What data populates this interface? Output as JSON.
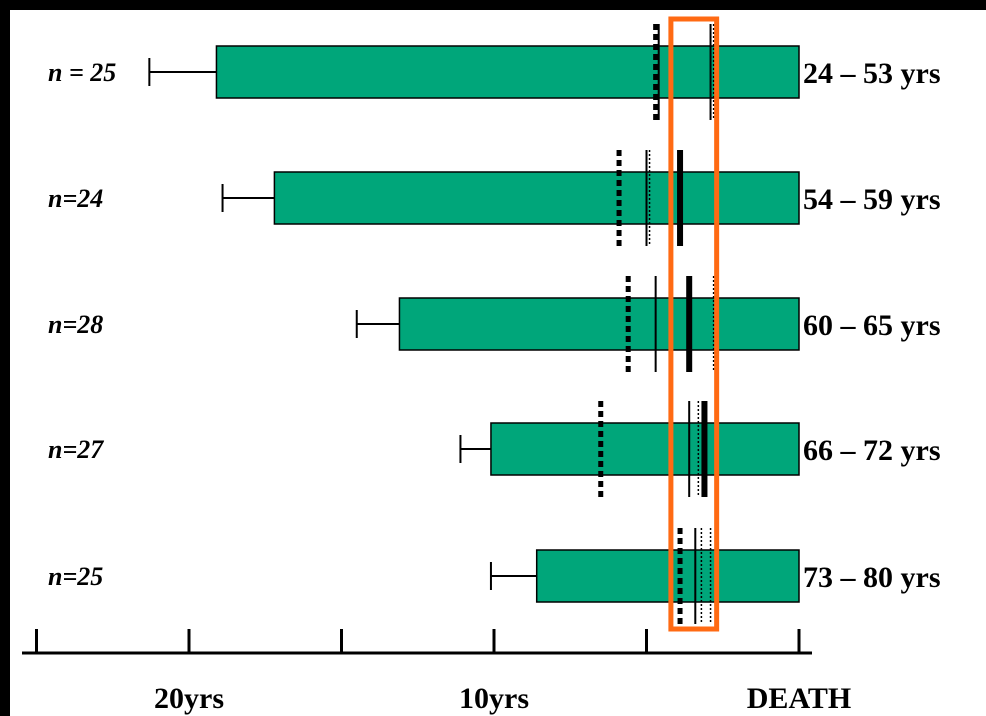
{
  "chart_data": {
    "type": "bar",
    "orientation": "horizontal",
    "x_axis": {
      "direction": "time before death",
      "range": [
        27,
        0
      ],
      "tick_values": [
        25,
        20,
        15,
        10,
        5,
        0
      ],
      "tick_labels": [
        {
          "value": 20,
          "label": "20yrs"
        },
        {
          "value": 10,
          "label": "10yrs"
        },
        {
          "value": 0,
          "label": "DEATH"
        }
      ]
    },
    "colors": {
      "bar": "#00a67a",
      "highlight": "#ff6a13",
      "background_outer": "#000000",
      "panel": "#ffffff"
    },
    "rows": [
      {
        "n_label": "n = 25",
        "age_label": "24 – 53 yrs",
        "bar_start": 19.1,
        "whisker_start": 21.3,
        "markers": [
          {
            "value": 4.7,
            "style": "dotted"
          },
          {
            "value": 4.6,
            "style": "solid-thin"
          },
          {
            "value": 2.9,
            "style": "solid-thin"
          },
          {
            "value": 2.8,
            "style": "dashed-thin"
          }
        ]
      },
      {
        "n_label": "n=24",
        "age_label": "54 – 59 yrs",
        "bar_start": 17.2,
        "whisker_start": 18.9,
        "markers": [
          {
            "value": 5.9,
            "style": "dotted"
          },
          {
            "value": 5.0,
            "style": "solid-thin"
          },
          {
            "value": 4.9,
            "style": "dashed-thin"
          },
          {
            "value": 3.9,
            "style": "solid-thick"
          }
        ]
      },
      {
        "n_label": "n=28",
        "age_label": "60 – 65 yrs",
        "bar_start": 13.1,
        "whisker_start": 14.5,
        "markers": [
          {
            "value": 5.6,
            "style": "dotted"
          },
          {
            "value": 4.7,
            "style": "solid-thin"
          },
          {
            "value": 3.6,
            "style": "solid-thick"
          },
          {
            "value": 2.8,
            "style": "dashed-thin"
          }
        ]
      },
      {
        "n_label": "n=27",
        "age_label": "66 – 72 yrs",
        "bar_start": 10.1,
        "whisker_start": 11.1,
        "markers": [
          {
            "value": 6.5,
            "style": "dotted"
          },
          {
            "value": 3.6,
            "style": "solid-thin"
          },
          {
            "value": 3.3,
            "style": "dashed-thin"
          },
          {
            "value": 3.1,
            "style": "solid-thick"
          }
        ]
      },
      {
        "n_label": "n=25",
        "age_label": "73 – 80 yrs",
        "bar_start": 8.6,
        "whisker_start": 10.1,
        "markers": [
          {
            "value": 3.9,
            "style": "dotted"
          },
          {
            "value": 3.4,
            "style": "solid-thin"
          },
          {
            "value": 3.2,
            "style": "dashed-thin"
          },
          {
            "value": 2.9,
            "style": "dashed-thin"
          }
        ]
      }
    ],
    "highlight_range": [
      4.2,
      2.7
    ]
  }
}
